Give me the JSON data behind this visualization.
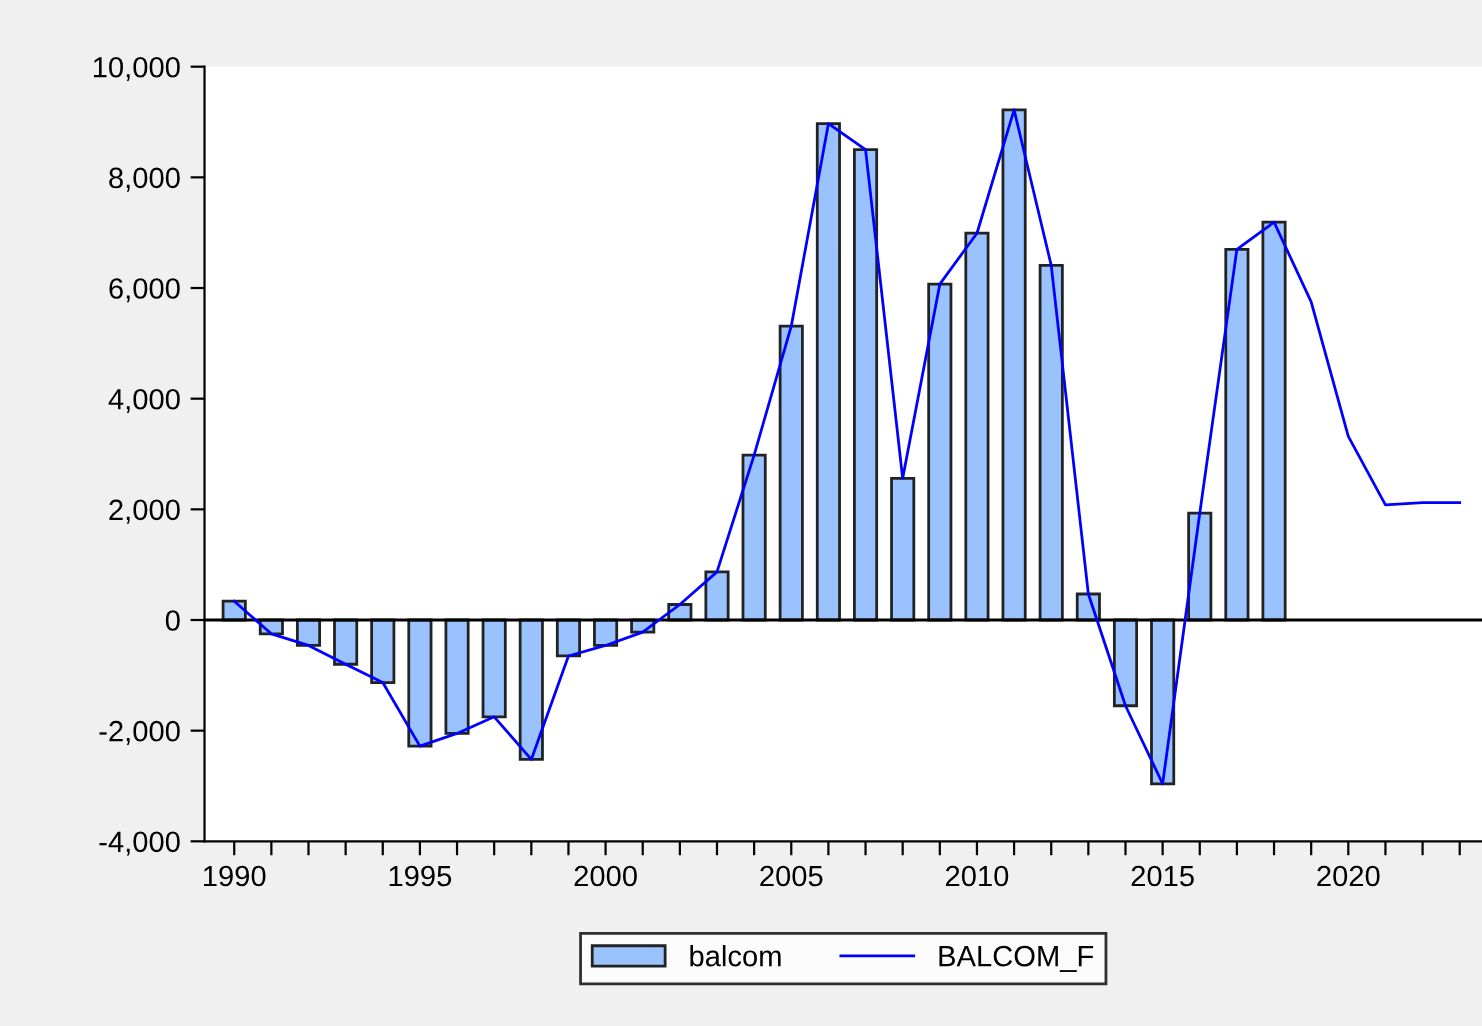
{
  "chart_data": {
    "type": "bar",
    "x": [
      1990,
      1991,
      1992,
      1993,
      1994,
      1995,
      1996,
      1997,
      1998,
      1999,
      2000,
      2001,
      2002,
      2003,
      2004,
      2005,
      2006,
      2007,
      2008,
      2009,
      2010,
      2011,
      2012,
      2013,
      2014,
      2015,
      2016,
      2017,
      2018,
      2019,
      2020,
      2021,
      2022,
      2023
    ],
    "series": [
      {
        "name": "balcom",
        "color": "#99c2ff",
        "values": [
          340,
          -250,
          -460,
          -800,
          -1130,
          -2280,
          -2050,
          -1750,
          -2520,
          -650,
          -460,
          -220,
          280,
          870,
          2980,
          5310,
          8970,
          8500,
          2560,
          6070,
          6990,
          9220,
          6410,
          470,
          -1550,
          -2960,
          1930,
          6700,
          7190,
          null,
          null,
          null,
          null,
          null
        ]
      },
      {
        "name": "BALCOM_F",
        "type": "line",
        "color": "#0000ff",
        "values": [
          340,
          -250,
          -460,
          -800,
          -1130,
          -2280,
          -2050,
          -1750,
          -2520,
          -650,
          -460,
          -220,
          280,
          870,
          2980,
          5310,
          8970,
          8500,
          2560,
          6070,
          6990,
          9220,
          6410,
          470,
          -1550,
          -2960,
          1930,
          6700,
          7190,
          5750,
          3320,
          2080,
          2120,
          2120
        ]
      }
    ],
    "xlim": [
      1989.2,
      2023.6
    ],
    "xticks": [
      1990,
      {
        "value": 1991,
        "label": null
      },
      {
        "value": 1992,
        "label": null
      },
      {
        "value": 1993,
        "label": null
      },
      {
        "value": 1994,
        "label": null
      },
      1995,
      {
        "value": 1996,
        "label": null
      },
      {
        "value": 1997,
        "label": null
      },
      {
        "value": 1998,
        "label": null
      },
      {
        "value": 1999,
        "label": null
      },
      2000,
      {
        "value": 2001,
        "label": null
      },
      {
        "value": 2002,
        "label": null
      },
      {
        "value": 2003,
        "label": null
      },
      {
        "value": 2004,
        "label": null
      },
      2005,
      {
        "value": 2006,
        "label": null
      },
      {
        "value": 2007,
        "label": null
      },
      {
        "value": 2008,
        "label": null
      },
      {
        "value": 2009,
        "label": null
      },
      2010,
      {
        "value": 2011,
        "label": null
      },
      {
        "value": 2012,
        "label": null
      },
      {
        "value": 2013,
        "label": null
      },
      {
        "value": 2014,
        "label": null
      },
      2015,
      {
        "value": 2016,
        "label": null
      },
      {
        "value": 2017,
        "label": null
      },
      {
        "value": 2018,
        "label": null
      },
      {
        "value": 2019,
        "label": null
      },
      2020,
      {
        "value": 2021,
        "label": null
      },
      {
        "value": 2022,
        "label": null
      },
      {
        "value": 2023,
        "label": null
      }
    ],
    "ylim": [
      -4000,
      10000
    ],
    "yticks": [
      {
        "value": -4000,
        "label": "-4,000"
      },
      {
        "value": -2000,
        "label": "-2,000"
      },
      0,
      {
        "value": 2000,
        "label": "2,000"
      },
      {
        "value": 4000,
        "label": "4,000"
      },
      {
        "value": 6000,
        "label": "6,000"
      },
      {
        "value": 8000,
        "label": "8,000"
      },
      {
        "value": 10000,
        "label": "10,000"
      }
    ],
    "ref_lines": [
      {
        "axis": "y",
        "value": 0,
        "color": "#000000",
        "line_style": "solid"
      }
    ],
    "grid": false,
    "legend": "bottom",
    "marker": "none",
    "line_style": "solid"
  }
}
